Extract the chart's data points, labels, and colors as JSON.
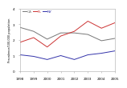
{
  "years": [
    1998,
    1999,
    2000,
    2001,
    2002,
    2003,
    2004,
    2005
  ],
  "CA": [
    2.8,
    2.55,
    2.05,
    2.45,
    2.45,
    2.35,
    1.95,
    2.1
  ],
  "FL": [
    1.85,
    2.15,
    1.55,
    2.25,
    2.55,
    3.2,
    2.75,
    3.1
  ],
  "NY": [
    1.05,
    0.95,
    0.75,
    1.0,
    0.75,
    1.05,
    1.15,
    1.3
  ],
  "CA_color": "#777777",
  "FL_color": "#cc3333",
  "NY_color": "#3333aa",
  "ylabel": "Prevalence/100,000 population",
  "ylim": [
    0,
    4
  ],
  "yticks": [
    0,
    1,
    2,
    3,
    4
  ],
  "xlim": [
    1998,
    2005
  ],
  "legend_labels": [
    "CA",
    "FL",
    "NY"
  ],
  "background_color": "#ffffff",
  "linewidth": 0.7
}
